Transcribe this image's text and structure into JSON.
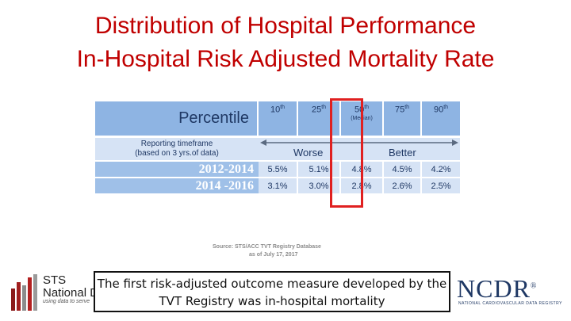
{
  "title_line1": "Distribution of Hospital Performance",
  "title_line2": "In-Hospital Risk Adjusted Mortality Rate",
  "chart_data": {
    "type": "table",
    "header_label": "Percentile",
    "columns": [
      {
        "base": "10",
        "suffix": "th"
      },
      {
        "base": "25",
        "suffix": "th"
      },
      {
        "base": "50",
        "suffix": "th",
        "note": "(Median)"
      },
      {
        "base": "75",
        "suffix": "th"
      },
      {
        "base": "90",
        "suffix": "th"
      }
    ],
    "reporting_label_line1": "Reporting timeframe",
    "reporting_label_line2": "(based on 3 yrs.of data)",
    "direction_left": "Worse",
    "direction_right": "Better",
    "rows": [
      {
        "period": "2012-2014",
        "values": [
          "5.5%",
          "5.1%",
          "4.8%",
          "4.5%",
          "4.2%"
        ]
      },
      {
        "period": "2014 -2016",
        "values": [
          "3.1%",
          "3.0%",
          "2.8%",
          "2.6%",
          "2.5%"
        ]
      }
    ],
    "highlighted_column": "50th (Median)",
    "highlight_color": "#e02020"
  },
  "source_line1": "Source:   STS/ACC TVT Registry Database",
  "source_line2": "as of  July 17, 2017",
  "caption_line1": "The first risk-adjusted outcome measure developed by the",
  "caption_line2": "TVT Registry was in-hospital mortality",
  "logos": {
    "sts_line1": "STS",
    "sts_line2": "National D",
    "sts_tagline": "using data to serve",
    "ncdr": "NCDR",
    "ncdr_mark": "®",
    "ncdr_sub": "NATIONAL CARDIOVASCULAR DATA REGISTRY"
  },
  "colors": {
    "title": "#c00000",
    "header_bg": "#8eb4e3",
    "cell_bg": "#d6e3f5",
    "text_dark": "#1f3864"
  }
}
